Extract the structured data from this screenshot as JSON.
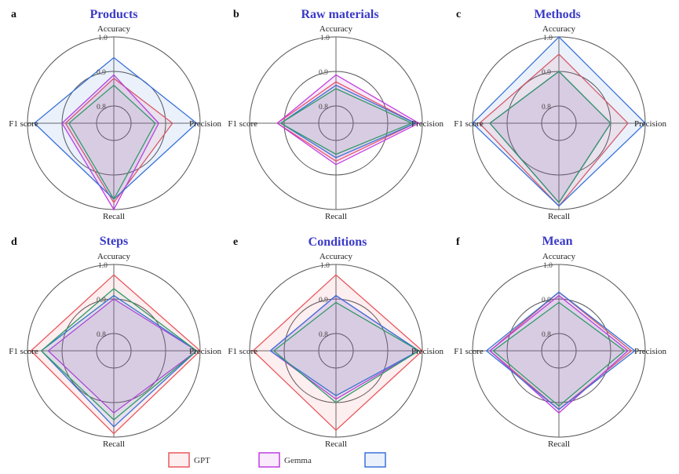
{
  "legend": [
    {
      "name": "GPT",
      "color": "#e8595e",
      "fill": "rgba(232,89,94,0.10)"
    },
    {
      "name": "Gemma",
      "color": "#c03ee0",
      "fill": "rgba(192,62,224,0.10)"
    },
    {
      "name": "",
      "color": "#3a72d8",
      "fill": "rgba(58,114,216,0.10)"
    }
  ],
  "extra_series": [
    {
      "name": "",
      "color": "#2f9a6a",
      "fill": "rgba(47,154,106,0.06)"
    }
  ],
  "chart_data": [
    {
      "type": "radar",
      "letter": "a",
      "title": "Products",
      "axes": [
        "Accuracy",
        "Precision",
        "Recall",
        "F1 score"
      ],
      "rlim": [
        0.75,
        1.0
      ],
      "ticks": [
        0.8,
        0.9,
        1.0
      ],
      "tick_labels": [
        "0.8",
        "0.9",
        "1.0"
      ],
      "series": [
        {
          "values": [
            0.88,
            0.92,
            0.98,
            0.89
          ]
        },
        {
          "values": [
            0.89,
            0.88,
            1.0,
            0.9
          ]
        },
        {
          "values": [
            0.94,
            0.99,
            0.97,
            0.98
          ]
        },
        {
          "values": [
            0.86,
            0.87,
            0.97,
            0.88
          ]
        }
      ]
    },
    {
      "type": "radar",
      "letter": "b",
      "title": "Raw materials",
      "axes": [
        "Accuracy",
        "Precision",
        "Recall",
        "F1 score"
      ],
      "rlim": [
        0.75,
        1.0
      ],
      "ticks": [
        0.8,
        0.9,
        1.0
      ],
      "tick_labels": [
        "0.8",
        "0.9",
        "1.0"
      ],
      "series": [
        {
          "values": [
            0.87,
            0.98,
            0.86,
            0.92
          ]
        },
        {
          "values": [
            0.89,
            0.99,
            0.87,
            0.92
          ]
        },
        {
          "values": [
            0.86,
            0.98,
            0.85,
            0.91
          ]
        },
        {
          "values": [
            0.85,
            0.97,
            0.84,
            0.91
          ]
        }
      ]
    },
    {
      "type": "radar",
      "letter": "c",
      "title": "Methods",
      "axes": [
        "Accuracy",
        "Precision",
        "Recall",
        "F1 score"
      ],
      "rlim": [
        0.75,
        1.0
      ],
      "ticks": [
        0.8,
        0.9,
        1.0
      ],
      "tick_labels": [
        "0.8",
        "0.9",
        "1.0"
      ],
      "series": [
        {
          "values": [
            0.95,
            0.95,
            0.99,
            0.98
          ]
        },
        {
          "values": [
            0.9,
            0.9,
            0.98,
            0.95
          ]
        },
        {
          "values": [
            1.0,
            1.0,
            0.99,
            1.0
          ]
        },
        {
          "values": [
            0.9,
            0.9,
            0.98,
            0.95
          ]
        }
      ]
    },
    {
      "type": "radar",
      "letter": "d",
      "title": "Steps",
      "axes": [
        "Accuracy",
        "Precision",
        "Recall",
        "F1 score"
      ],
      "rlim": [
        0.75,
        1.0
      ],
      "ticks": [
        0.8,
        0.9,
        1.0
      ],
      "tick_labels": [
        "0.8",
        "0.9",
        "1.0"
      ],
      "series": [
        {
          "values": [
            0.97,
            1.0,
            0.99,
            0.99
          ]
        },
        {
          "values": [
            0.9,
            0.99,
            0.93,
            0.94
          ]
        },
        {
          "values": [
            0.91,
            0.99,
            0.97,
            0.96
          ]
        },
        {
          "values": [
            0.93,
            0.99,
            0.95,
            0.96
          ]
        }
      ]
    },
    {
      "type": "radar",
      "letter": "e",
      "title": "Conditions",
      "axes": [
        "Accuracy",
        "Precision",
        "Recall",
        "F1 score"
      ],
      "rlim": [
        0.75,
        1.0
      ],
      "ticks": [
        0.8,
        0.9,
        1.0
      ],
      "tick_labels": [
        "0.8",
        "0.9",
        "1.0"
      ],
      "series": [
        {
          "values": [
            0.97,
            1.0,
            0.98,
            0.99
          ]
        },
        {
          "values": [
            0.91,
            0.99,
            0.89,
            0.94
          ]
        },
        {
          "values": [
            0.91,
            0.99,
            0.88,
            0.94
          ]
        },
        {
          "values": [
            0.89,
            0.99,
            0.9,
            0.93
          ]
        }
      ]
    },
    {
      "type": "radar",
      "letter": "f",
      "title": "Mean",
      "axes": [
        "Accuracy",
        "Precision",
        "Recall",
        "F1 score"
      ],
      "rlim": [
        0.75,
        1.0
      ],
      "ticks": [
        0.8,
        0.9,
        1.0
      ],
      "tick_labels": [
        "0.8",
        "0.9",
        "1.0"
      ],
      "series": [
        {
          "values": [
            0.92,
            0.96,
            0.92,
            0.95
          ]
        },
        {
          "values": [
            0.91,
            0.95,
            0.93,
            0.95
          ]
        },
        {
          "values": [
            0.92,
            0.97,
            0.92,
            0.96
          ]
        },
        {
          "values": [
            0.89,
            0.94,
            0.91,
            0.94
          ]
        }
      ]
    }
  ]
}
